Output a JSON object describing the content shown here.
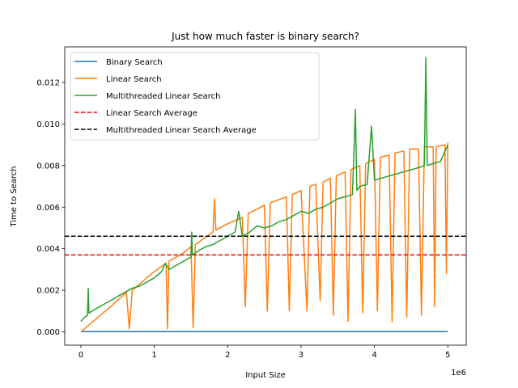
{
  "chart_data": {
    "type": "line",
    "title": "Just how much faster is binary search?",
    "xlabel": "Input Size",
    "ylabel": "Time to Search",
    "x_offset_label": "1e6",
    "xlim": [
      -220000,
      5250000
    ],
    "ylim": [
      -0.00064,
      0.01371
    ],
    "xticks": [
      0,
      1000000,
      2000000,
      3000000,
      4000000,
      5000000
    ],
    "xtick_labels": [
      "0",
      "1",
      "2",
      "3",
      "4",
      "5"
    ],
    "yticks": [
      0.0,
      0.002,
      0.004,
      0.006,
      0.008,
      0.01,
      0.012
    ],
    "ytick_labels": [
      "0.000",
      "0.002",
      "0.004",
      "0.006",
      "0.008",
      "0.010",
      "0.012"
    ],
    "grid": false,
    "legend_position": "upper-left",
    "series": [
      {
        "name": "Binary Search",
        "color": "#1f77b4",
        "style": "solid",
        "x": [
          0,
          5000000
        ],
        "y": [
          1e-05,
          1e-05
        ]
      },
      {
        "name": "Linear Search",
        "color": "#ff7f0e",
        "style": "solid",
        "x": [
          0,
          200000,
          400000,
          620000,
          660000,
          700000,
          900000,
          1000000,
          1160000,
          1180000,
          1200000,
          1400000,
          1500000,
          1530000,
          1560000,
          1600000,
          1800000,
          1820000,
          1840000,
          2000000,
          2200000,
          2240000,
          2280000,
          2400000,
          2500000,
          2540000,
          2580000,
          2800000,
          2840000,
          2880000,
          3000000,
          3080000,
          3120000,
          3200000,
          3260000,
          3300000,
          3400000,
          3440000,
          3480000,
          3600000,
          3640000,
          3680000,
          3800000,
          3840000,
          3880000,
          4000000,
          4040000,
          4080000,
          4200000,
          4240000,
          4280000,
          4400000,
          4440000,
          4480000,
          4600000,
          4640000,
          4680000,
          4800000,
          4820000,
          4840000,
          4960000,
          4980000,
          5000000
        ],
        "y": [
          0.0,
          0.0006,
          0.0012,
          0.0019,
          0.00015,
          0.002,
          0.0026,
          0.0029,
          0.0033,
          0.00015,
          0.0034,
          0.0038,
          0.0041,
          0.0002,
          0.0042,
          0.0043,
          0.0048,
          0.0064,
          0.0049,
          0.0052,
          0.0055,
          0.0012,
          0.0057,
          0.0059,
          0.0061,
          0.001,
          0.0062,
          0.0065,
          0.001,
          0.0066,
          0.0068,
          0.001,
          0.007,
          0.0071,
          0.0015,
          0.0072,
          0.0074,
          0.0008,
          0.0075,
          0.0077,
          0.0005,
          0.0078,
          0.008,
          0.0009,
          0.0081,
          0.0083,
          0.001,
          0.0084,
          0.0085,
          0.0005,
          0.0086,
          0.0087,
          0.0007,
          0.0088,
          0.0088,
          0.0008,
          0.0089,
          0.0089,
          0.0012,
          0.0089,
          0.009,
          0.0028,
          0.0091
        ]
      },
      {
        "name": "Multithreaded Linear Search",
        "color": "#2ca02c",
        "style": "solid",
        "x": [
          0,
          50000,
          90000,
          100000,
          110000,
          200000,
          300000,
          400000,
          500000,
          600000,
          700000,
          800000,
          900000,
          1000000,
          1100000,
          1150000,
          1200000,
          1300000,
          1400000,
          1500000,
          1510000,
          1520000,
          1600000,
          1700000,
          1800000,
          1900000,
          2000000,
          2100000,
          2150000,
          2200000,
          2300000,
          2400000,
          2500000,
          2600000,
          2700000,
          2800000,
          2900000,
          3000000,
          3100000,
          3200000,
          3300000,
          3400000,
          3500000,
          3600000,
          3700000,
          3740000,
          3760000,
          3800000,
          3900000,
          3960000,
          4000000,
          4100000,
          4200000,
          4300000,
          4400000,
          4500000,
          4600000,
          4680000,
          4700000,
          4720000,
          4800000,
          4900000,
          5000000
        ],
        "y": [
          0.0005,
          0.0007,
          0.0008,
          0.0021,
          0.0009,
          0.0011,
          0.0013,
          0.0015,
          0.0017,
          0.0019,
          0.0021,
          0.0022,
          0.0024,
          0.0026,
          0.0029,
          0.0033,
          0.003,
          0.0032,
          0.0034,
          0.0036,
          0.0048,
          0.0037,
          0.0039,
          0.0041,
          0.0042,
          0.0044,
          0.0046,
          0.0048,
          0.0058,
          0.0046,
          0.0048,
          0.0051,
          0.005,
          0.0051,
          0.0053,
          0.0054,
          0.0056,
          0.0058,
          0.0057,
          0.0059,
          0.006,
          0.0062,
          0.0064,
          0.0065,
          0.0066,
          0.0107,
          0.0068,
          0.007,
          0.0071,
          0.0099,
          0.0073,
          0.0074,
          0.0075,
          0.0076,
          0.0077,
          0.0078,
          0.0079,
          0.008,
          0.0132,
          0.008,
          0.0081,
          0.0082,
          0.009
        ]
      },
      {
        "name": "Linear Search Average",
        "color": "#ff0000",
        "style": "dashed",
        "y": 0.0037
      },
      {
        "name": "Multithreaded Linear Search Average",
        "color": "#000000",
        "style": "dashed",
        "y": 0.0046
      }
    ]
  }
}
